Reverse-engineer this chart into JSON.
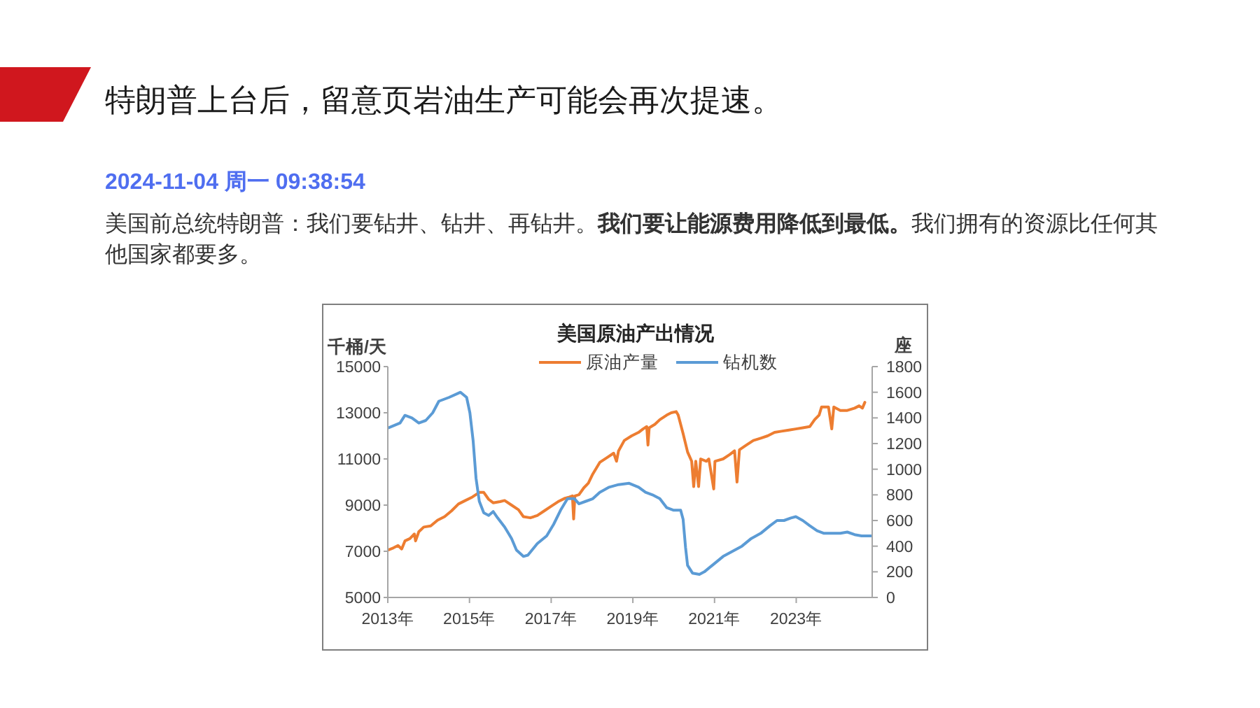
{
  "chart_data": {
    "type": "line",
    "title": "美国原油产出情况",
    "ylabel": "千桶/天",
    "y2label": "座",
    "annotations": [
      "特朗普上台后，留意页岩油生产可能会再次提速。",
      "2024-11-04 周一 09:38:54",
      "美国前总统特朗普：我们要钻井、钻井、再钻井。",
      "我们要让能源费用降低到最低。",
      "我们拥有的资源比任何其",
      "他国家都要多。"
    ],
    "xlim": [
      2013,
      2024.86
    ],
    "xticks": [
      {
        "value": 2013,
        "label": "2013年"
      },
      {
        "value": 2015,
        "label": "2015年"
      },
      {
        "value": 2017,
        "label": "2017年"
      },
      {
        "value": 2019,
        "label": "2019年"
      },
      {
        "value": 2021,
        "label": "2021年"
      },
      {
        "value": 2023,
        "label": "2023年"
      }
    ],
    "ylim": [
      5000,
      15000
    ],
    "yticks": [
      5000,
      7000,
      9000,
      11000,
      13000,
      15000
    ],
    "y2lim": [
      0,
      1800
    ],
    "y2ticks": [
      0,
      200,
      400,
      600,
      800,
      1000,
      1200,
      1400,
      1600,
      1800
    ],
    "legend": "top",
    "marker": "none",
    "line_style": "solid",
    "series": [
      {
        "name": "原油产量",
        "color": "#ed7d31",
        "x": [
          2013.0,
          2013.14,
          2013.25,
          2013.34,
          2013.42,
          2013.54,
          2013.65,
          2013.68,
          2013.76,
          2013.88,
          2014.05,
          2014.22,
          2014.39,
          2014.56,
          2014.73,
          2014.9,
          2015.07,
          2015.24,
          2015.35,
          2015.47,
          2015.58,
          2015.75,
          2015.86,
          2016.03,
          2016.2,
          2016.32,
          2016.49,
          2016.66,
          2016.83,
          2017.0,
          2017.17,
          2017.34,
          2017.45,
          2017.52,
          2017.55,
          2017.58,
          2017.68,
          2017.8,
          2017.91,
          2018.02,
          2018.19,
          2018.36,
          2018.53,
          2018.6,
          2018.65,
          2018.79,
          2018.97,
          2019.14,
          2019.25,
          2019.34,
          2019.37,
          2019.4,
          2019.54,
          2019.66,
          2019.83,
          2019.94,
          2020.06,
          2020.11,
          2020.23,
          2020.34,
          2020.44,
          2020.49,
          2020.54,
          2020.61,
          2020.66,
          2020.8,
          2020.86,
          2020.98,
          2021.01,
          2021.21,
          2021.38,
          2021.49,
          2021.55,
          2021.61,
          2021.78,
          2021.95,
          2022.13,
          2022.3,
          2022.47,
          2022.64,
          2022.82,
          2022.99,
          2023.16,
          2023.33,
          2023.45,
          2023.56,
          2023.62,
          2023.79,
          2023.87,
          2023.92,
          2024.08,
          2024.25,
          2024.43,
          2024.54,
          2024.62,
          2024.68
        ],
        "values": [
          7050,
          7150,
          7250,
          7100,
          7450,
          7550,
          7750,
          7450,
          7850,
          8050,
          8100,
          8350,
          8500,
          8750,
          9050,
          9200,
          9350,
          9550,
          9550,
          9250,
          9100,
          9150,
          9200,
          9000,
          8800,
          8500,
          8450,
          8550,
          8750,
          8950,
          9150,
          9300,
          9350,
          9400,
          8400,
          9400,
          9450,
          9750,
          9950,
          10350,
          10850,
          11050,
          11250,
          10900,
          11350,
          11800,
          12000,
          12150,
          12300,
          12400,
          11600,
          12350,
          12500,
          12700,
          12900,
          13000,
          13050,
          12900,
          12100,
          11300,
          10900,
          9800,
          10900,
          9800,
          11000,
          10900,
          11000,
          9700,
          10900,
          11000,
          11200,
          11350,
          10000,
          11400,
          11600,
          11800,
          11900,
          12000,
          12150,
          12200,
          12250,
          12300,
          12350,
          12400,
          12700,
          12900,
          13250,
          13250,
          12300,
          13250,
          13100,
          13100,
          13200,
          13300,
          13200,
          13450
        ]
      },
      {
        "name": "钻机数",
        "color": "#5b9bd5",
        "axis": "y2",
        "x": [
          2013.0,
          2013.3,
          2013.42,
          2013.59,
          2013.76,
          2013.93,
          2014.1,
          2014.25,
          2014.5,
          2014.78,
          2014.93,
          2015.01,
          2015.09,
          2015.16,
          2015.24,
          2015.35,
          2015.47,
          2015.58,
          2015.69,
          2015.86,
          2016.03,
          2016.15,
          2016.32,
          2016.43,
          2016.66,
          2016.89,
          2017.06,
          2017.23,
          2017.4,
          2017.57,
          2017.68,
          2017.85,
          2018.02,
          2018.19,
          2018.42,
          2018.65,
          2018.91,
          2019.14,
          2019.31,
          2019.48,
          2019.66,
          2019.83,
          2020.0,
          2020.17,
          2020.23,
          2020.29,
          2020.34,
          2020.46,
          2020.63,
          2020.75,
          2020.98,
          2021.21,
          2021.44,
          2021.67,
          2021.9,
          2022.13,
          2022.36,
          2022.53,
          2022.7,
          2022.87,
          2022.99,
          2023.16,
          2023.33,
          2023.51,
          2023.68,
          2023.91,
          2024.08,
          2024.25,
          2024.43,
          2024.6,
          2024.83
        ],
        "values": [
          1320,
          1360,
          1420,
          1400,
          1360,
          1380,
          1440,
          1530,
          1560,
          1600,
          1560,
          1440,
          1220,
          930,
          750,
          660,
          640,
          670,
          620,
          550,
          460,
          370,
          320,
          330,
          420,
          480,
          570,
          680,
          770,
          770,
          730,
          750,
          770,
          820,
          860,
          880,
          890,
          860,
          820,
          800,
          770,
          700,
          680,
          680,
          610,
          390,
          250,
          190,
          180,
          200,
          260,
          320,
          360,
          400,
          460,
          500,
          560,
          600,
          600,
          620,
          630,
          600,
          560,
          520,
          500,
          500,
          500,
          510,
          490,
          480,
          480
        ]
      }
    ]
  }
}
